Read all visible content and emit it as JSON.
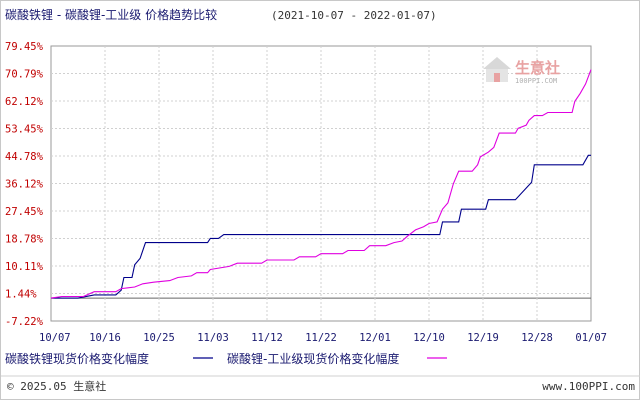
{
  "chart_data": {
    "type": "line",
    "title": "碳酸铁锂 - 碳酸锂-工业级 价格趋势比较",
    "date_range": "(2021-10-07 - 2022-01-07)",
    "y_ticks": [
      "79.45%",
      "70.79%",
      "62.12%",
      "53.45%",
      "44.78%",
      "36.12%",
      "27.45%",
      "18.78%",
      "10.11%",
      "1.44%",
      "-7.22%"
    ],
    "x_ticks": [
      "10/07",
      "10/16",
      "10/25",
      "11/03",
      "11/12",
      "11/22",
      "12/01",
      "12/10",
      "12/19",
      "12/28",
      "01/07"
    ],
    "ylim": [
      -7.22,
      79.45
    ],
    "xlim": [
      0,
      10
    ],
    "grid": true,
    "legend_position": "bottom",
    "series": [
      {
        "name": "碳酸铁锂现货价格变化幅度",
        "color": "#00008b",
        "points": [
          [
            0,
            0.0
          ],
          [
            0.5,
            0.0
          ],
          [
            0.8,
            1.0
          ],
          [
            1.2,
            1.0
          ],
          [
            1.3,
            2.5
          ],
          [
            1.35,
            6.5
          ],
          [
            1.5,
            6.5
          ],
          [
            1.55,
            10.5
          ],
          [
            1.65,
            12.5
          ],
          [
            1.75,
            17.5
          ],
          [
            2.9,
            17.5
          ],
          [
            2.95,
            18.8
          ],
          [
            3.1,
            18.8
          ],
          [
            3.2,
            20.0
          ],
          [
            7.0,
            20.0
          ],
          [
            7.2,
            20.0
          ],
          [
            7.25,
            24.0
          ],
          [
            7.55,
            24.0
          ],
          [
            7.6,
            28.0
          ],
          [
            8.05,
            28.0
          ],
          [
            8.1,
            31.0
          ],
          [
            8.6,
            31.0
          ],
          [
            8.9,
            36.5
          ],
          [
            8.95,
            42.0
          ],
          [
            9.85,
            42.0
          ],
          [
            9.95,
            45.0
          ],
          [
            10.0,
            45.0
          ]
        ]
      },
      {
        "name": "碳酸锂-工业级现货价格变化幅度",
        "color": "#e000e0",
        "points": [
          [
            0,
            0.0
          ],
          [
            0.2,
            0.5
          ],
          [
            0.6,
            0.5
          ],
          [
            0.8,
            2.0
          ],
          [
            1.2,
            2.0
          ],
          [
            1.3,
            3.0
          ],
          [
            1.55,
            3.5
          ],
          [
            1.7,
            4.5
          ],
          [
            1.9,
            5.0
          ],
          [
            2.2,
            5.5
          ],
          [
            2.35,
            6.5
          ],
          [
            2.6,
            7.0
          ],
          [
            2.7,
            8.0
          ],
          [
            2.9,
            8.0
          ],
          [
            2.95,
            9.0
          ],
          [
            3.3,
            10.0
          ],
          [
            3.45,
            11.0
          ],
          [
            3.9,
            11.0
          ],
          [
            4.0,
            12.0
          ],
          [
            4.5,
            12.0
          ],
          [
            4.6,
            13.0
          ],
          [
            4.9,
            13.0
          ],
          [
            5.0,
            14.0
          ],
          [
            5.4,
            14.0
          ],
          [
            5.5,
            15.0
          ],
          [
            5.8,
            15.0
          ],
          [
            5.9,
            16.5
          ],
          [
            6.2,
            16.5
          ],
          [
            6.35,
            17.5
          ],
          [
            6.5,
            18.0
          ],
          [
            6.6,
            19.5
          ],
          [
            6.75,
            21.5
          ],
          [
            6.9,
            22.5
          ],
          [
            7.0,
            23.5
          ],
          [
            7.15,
            24.0
          ],
          [
            7.25,
            28.0
          ],
          [
            7.35,
            30.0
          ],
          [
            7.45,
            36.0
          ],
          [
            7.55,
            40.0
          ],
          [
            7.8,
            40.0
          ],
          [
            7.9,
            42.0
          ],
          [
            7.95,
            44.5
          ],
          [
            8.1,
            46.0
          ],
          [
            8.2,
            47.5
          ],
          [
            8.3,
            52.0
          ],
          [
            8.6,
            52.0
          ],
          [
            8.65,
            53.5
          ],
          [
            8.8,
            54.5
          ],
          [
            8.85,
            56.0
          ],
          [
            8.95,
            57.5
          ],
          [
            9.1,
            57.5
          ],
          [
            9.2,
            58.5
          ],
          [
            9.65,
            58.5
          ],
          [
            9.7,
            62.0
          ],
          [
            9.8,
            64.5
          ],
          [
            9.9,
            67.5
          ],
          [
            10.0,
            72.0
          ]
        ]
      }
    ]
  },
  "logo": {
    "name": "生意社",
    "sub": "100PPI.COM"
  },
  "footer": {
    "left": "© 2025.05 生意社",
    "right": "www.100PPI.com"
  }
}
